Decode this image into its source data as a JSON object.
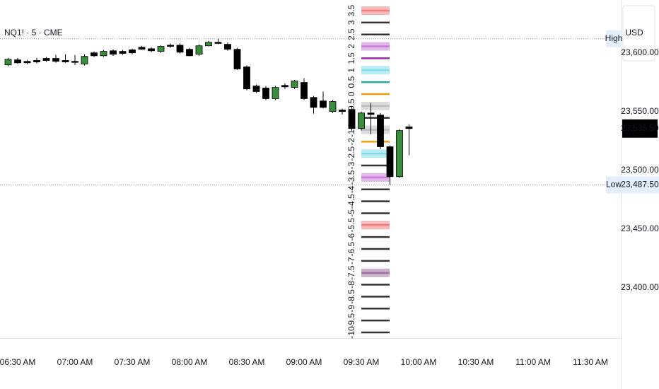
{
  "chart_data": {
    "type": "candlestick",
    "symbol": "NQ1! · 5 · CME",
    "currency": "USD",
    "categories": [
      null,
      "06:30 AM",
      null,
      null,
      null,
      null,
      null,
      "07:00 AM",
      null,
      null,
      null,
      null,
      null,
      "07:30 AM",
      null,
      null,
      null,
      null,
      null,
      "08:00 AM",
      null,
      null,
      null,
      null,
      null,
      "08:30 AM",
      null,
      null,
      null,
      null,
      null,
      "09:00 AM",
      null,
      null,
      null,
      null,
      null,
      "09:30 AM",
      null,
      null,
      null,
      null,
      null,
      "10:00 AM",
      null,
      null,
      null,
      null,
      null,
      "10:30 AM",
      null,
      null,
      null,
      null,
      null,
      "11:00 AM",
      null,
      null,
      null,
      null,
      null,
      "11:30 AM"
    ],
    "open": [
      23589.75,
      23594,
      23592.75,
      23593.5,
      23595.25,
      23595.25,
      23593.5,
      23592.75,
      23590.5,
      23600,
      23597.5,
      23601.75,
      23601.25,
      23602.5,
      23604.75,
      23603.5,
      23601.25,
      23606.5,
      23606.5,
      23603,
      23598.75,
      23606,
      23609,
      23607.25,
      23603,
      23588,
      23571.75,
      23570,
      23561,
      23572.25,
      23570.5,
      23574.75,
      23562,
      23559,
      23550,
      23551.25,
      23551.75,
      23535.5,
      23548.75,
      23547,
      23520,
      23494.5,
      23537,
      null,
      null,
      null,
      null,
      null,
      null,
      null,
      null,
      null,
      null,
      null,
      null,
      null,
      null,
      null,
      null,
      null,
      null,
      null
    ],
    "high": [
      23595.75,
      23595.75,
      23594,
      23595.75,
      23596.5,
      23598.25,
      23598.75,
      23598.25,
      23598.75,
      23601.25,
      23602.5,
      23603,
      23602.5,
      23603.5,
      23606,
      23604.75,
      23606.5,
      23608,
      23608,
      23604.25,
      23607.25,
      23610.25,
      23612,
      23609,
      23604.25,
      23589.25,
      23573,
      23571.75,
      23571.75,
      23574,
      23577,
      23578.25,
      23563.25,
      23567,
      23559.75,
      23552.5,
      23554.75,
      23550,
      23557.25,
      23548.75,
      23521,
      23535,
      23539,
      null,
      null,
      null,
      null,
      null,
      null,
      null,
      null,
      null,
      null,
      null,
      null,
      null,
      null,
      null,
      null,
      null,
      null,
      null
    ],
    "low": [
      23588.5,
      23590.5,
      23590.5,
      23591,
      23592.25,
      23591.5,
      23591.5,
      23589.75,
      23589.25,
      23596.5,
      23596.5,
      23597.5,
      23598.25,
      23598.75,
      23602.5,
      23600.5,
      23600,
      23604.25,
      23599.5,
      23597,
      23597.5,
      23605.5,
      23607.25,
      23601.75,
      23585.5,
      23568,
      23565.75,
      23559.75,
      23559.75,
      23569.25,
      23569.25,
      23559.75,
      23548.25,
      23552.5,
      23548.75,
      23547.5,
      23533.75,
      23533.75,
      23530.75,
      23518,
      23487.5,
      23493.5,
      23512.75,
      null,
      null,
      null,
      null,
      null,
      null,
      null,
      null,
      null,
      null,
      null,
      null,
      null,
      null,
      null,
      null,
      null,
      null,
      null
    ],
    "close": [
      23594.5,
      23591.5,
      23591.5,
      23592.25,
      23593.5,
      23592.75,
      23592.25,
      23592.25,
      23597,
      23597.5,
      23601.25,
      23598.75,
      23599.5,
      23600,
      23603,
      23601.75,
      23605.5,
      23605.5,
      23600.5,
      23597.5,
      23606,
      23609,
      23608,
      23603,
      23586.25,
      23569.25,
      23567,
      23561,
      23570.5,
      23571,
      23576,
      23561,
      23553.5,
      23553.5,
      23558.5,
      23550,
      23535.5,
      23548.75,
      23547.5,
      23520,
      23494.5,
      23533.75,
      23535.5,
      null,
      null,
      null,
      null,
      null,
      null,
      null,
      null,
      null,
      null,
      null,
      null,
      null,
      null,
      null,
      null,
      null,
      null,
      null
    ],
    "up_color": "#388e3c",
    "down_color": "#000000",
    "ylim": [
      23357,
      23645
    ],
    "yticks": [
      {
        "value": 23600,
        "label": "23,600.00"
      },
      {
        "value": 23550,
        "label": "23,550.00"
      },
      {
        "value": 23500,
        "label": "23,500.00"
      },
      {
        "value": 23450,
        "label": "23,450.00"
      },
      {
        "value": 23400,
        "label": "23,400.00"
      }
    ],
    "last_price": {
      "value": 23535.5,
      "label": "23,535.50"
    },
    "high_marker": {
      "label": "High",
      "value": 23612
    },
    "low_marker": {
      "label": "Low",
      "value": {
        "value": 23487.5,
        "label": "23,487.50"
      }
    },
    "levels": [
      {
        "label": "3.5",
        "color": "#f08080",
        "band": true
      },
      {
        "label": "3",
        "color": "#333333",
        "band": false
      },
      {
        "label": "2.5",
        "color": "#333333",
        "band": false
      },
      {
        "label": "2",
        "color": "#c77dd7",
        "band": true
      },
      {
        "label": "1.5",
        "color": "#9c27b0",
        "band": false
      },
      {
        "label": "1",
        "color": "#80deea",
        "band": true
      },
      {
        "label": "0.5",
        "color": "#26a69a",
        "band": false
      },
      {
        "label": "0",
        "color": "#f39c12",
        "band": false
      },
      {
        "label": "-0.5",
        "color": "#bdbdbd",
        "band": true
      },
      {
        "label": "-1",
        "color": "#333333",
        "band": false
      },
      {
        "label": "-1.5",
        "color": "#bdbdbd",
        "band": true
      },
      {
        "label": "-2",
        "color": "#f39c12",
        "band": false
      },
      {
        "label": "-2.5",
        "color": "#80deea",
        "band": true
      },
      {
        "label": "-3",
        "color": "#333333",
        "band": false
      },
      {
        "label": "-3.5",
        "color": "#c77dd7",
        "band": true
      },
      {
        "label": "-4",
        "color": "#333333",
        "band": false
      },
      {
        "label": "-4.5",
        "color": "#333333",
        "band": false
      },
      {
        "label": "-5",
        "color": "#333333",
        "band": false
      },
      {
        "label": "-5.5",
        "color": "#f08080",
        "band": true
      },
      {
        "label": "-6",
        "color": "#333333",
        "band": false
      },
      {
        "label": "-6.5",
        "color": "#333333",
        "band": false
      },
      {
        "label": "-7",
        "color": "#333333",
        "band": false
      },
      {
        "label": "-7.5",
        "color": "#a0709f",
        "band": true
      },
      {
        "label": "-8",
        "color": "#333333",
        "band": false
      },
      {
        "label": "-8.5",
        "color": "#333333",
        "band": false
      },
      {
        "label": "-9",
        "color": "#333333",
        "band": false
      },
      {
        "label": "-9.5",
        "color": "#333333",
        "band": false
      },
      {
        "label": "-10",
        "color": "#333333",
        "band": false
      }
    ]
  }
}
